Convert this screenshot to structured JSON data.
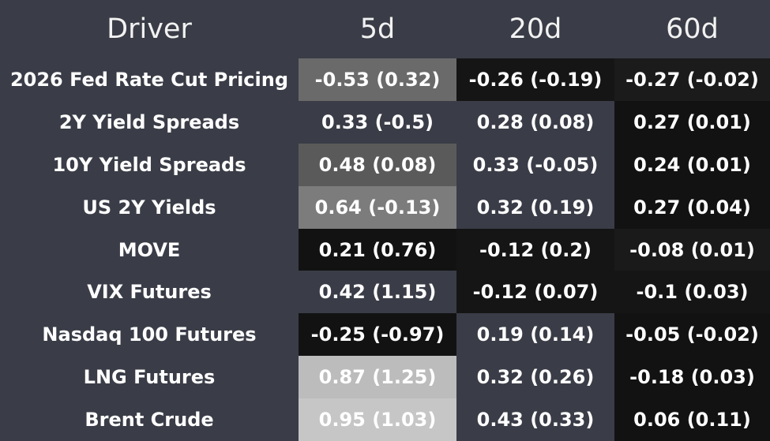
{
  "table": {
    "header": [
      "Driver",
      "5d",
      "20d",
      "60d"
    ],
    "rows": [
      [
        "2026 Fed Rate Cut Pricing",
        "-0.53 (0.32)",
        "-0.26 (-0.19)",
        "-0.27 (-0.02)"
      ],
      [
        "2Y Yield Spreads",
        "0.33 (-0.5)",
        "0.28 (0.08)",
        "0.27 (0.01)"
      ],
      [
        "10Y Yield Spreads",
        "0.48 (0.08)",
        "0.33 (-0.05)",
        "0.24 (0.01)"
      ],
      [
        "US 2Y Yields",
        "0.64 (-0.13)",
        "0.32 (0.19)",
        "0.27 (0.04)"
      ],
      [
        "MOVE",
        "0.21 (0.76)",
        "-0.12 (0.2)",
        "-0.08 (0.01)"
      ],
      [
        "VIX Futures",
        "0.42 (1.15)",
        "-0.12 (0.07)",
        "-0.1 (0.03)"
      ],
      [
        "Nasdaq 100 Futures",
        "-0.25 (-0.97)",
        "0.19 (0.14)",
        "-0.05 (-0.02)"
      ],
      [
        "LNG Futures",
        "0.87 (1.25)",
        "0.32 (0.26)",
        "-0.18 (0.03)"
      ],
      [
        "Brent Crude",
        "0.95 (1.03)",
        "0.43 (0.33)",
        "0.06 (0.11)"
      ]
    ]
  }
}
